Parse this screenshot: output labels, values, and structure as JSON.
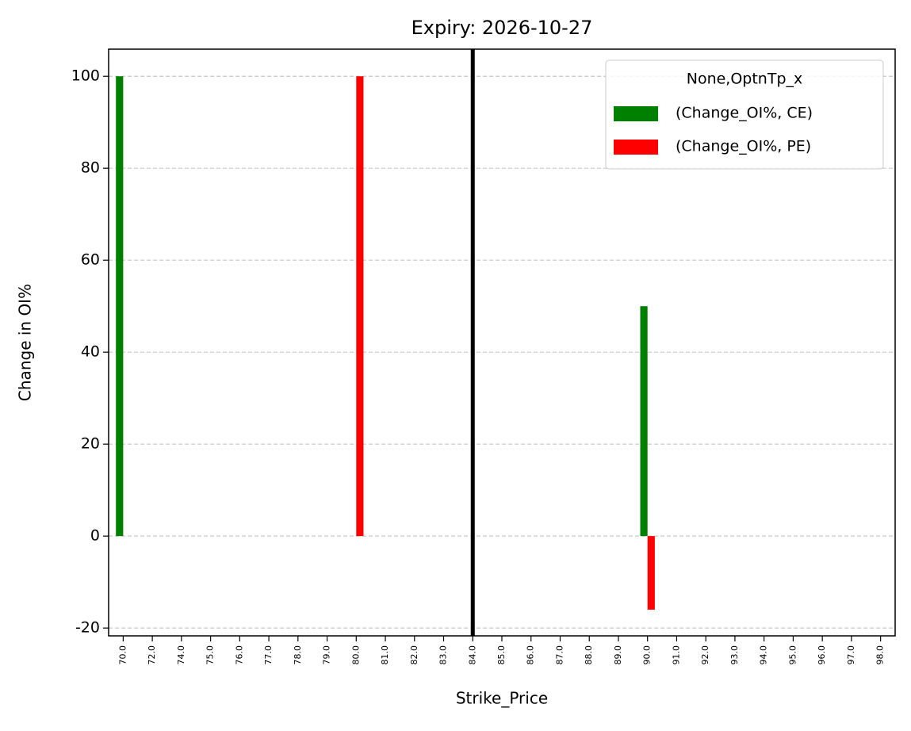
{
  "chart_data": {
    "type": "bar",
    "title": "Expiry: 2026-10-27",
    "x_label": "Strike_Price",
    "y_label": "Change in OI%",
    "categories": [
      "70.0",
      "72.0",
      "74.0",
      "75.0",
      "76.0",
      "77.0",
      "78.0",
      "79.0",
      "80.0",
      "81.0",
      "82.0",
      "83.0",
      "84.0",
      "85.0",
      "86.0",
      "87.0",
      "88.0",
      "89.0",
      "90.0",
      "91.0",
      "92.0",
      "93.0",
      "94.0",
      "95.0",
      "96.0",
      "97.0",
      "98.0"
    ],
    "series": [
      {
        "name": "(Change_OI%, CE)",
        "color": "#008000",
        "values": [
          100,
          null,
          null,
          null,
          null,
          null,
          null,
          null,
          null,
          null,
          null,
          null,
          null,
          null,
          null,
          null,
          null,
          null,
          50,
          null,
          null,
          null,
          null,
          null,
          null,
          null,
          null
        ]
      },
      {
        "name": "(Change_OI%, PE)",
        "color": "#ff0000",
        "values": [
          null,
          null,
          null,
          null,
          null,
          null,
          null,
          null,
          100,
          null,
          null,
          null,
          null,
          null,
          null,
          null,
          null,
          null,
          -16,
          null,
          null,
          null,
          null,
          null,
          null,
          null,
          null
        ]
      }
    ],
    "legend_title": "None,OptnTp_x",
    "legend_position": "upper right",
    "vline_category": "84.0",
    "ylim": [
      -21.7,
      105.9
    ],
    "yticks": [
      -20,
      0,
      20,
      40,
      60,
      80,
      100
    ],
    "grid": true
  }
}
